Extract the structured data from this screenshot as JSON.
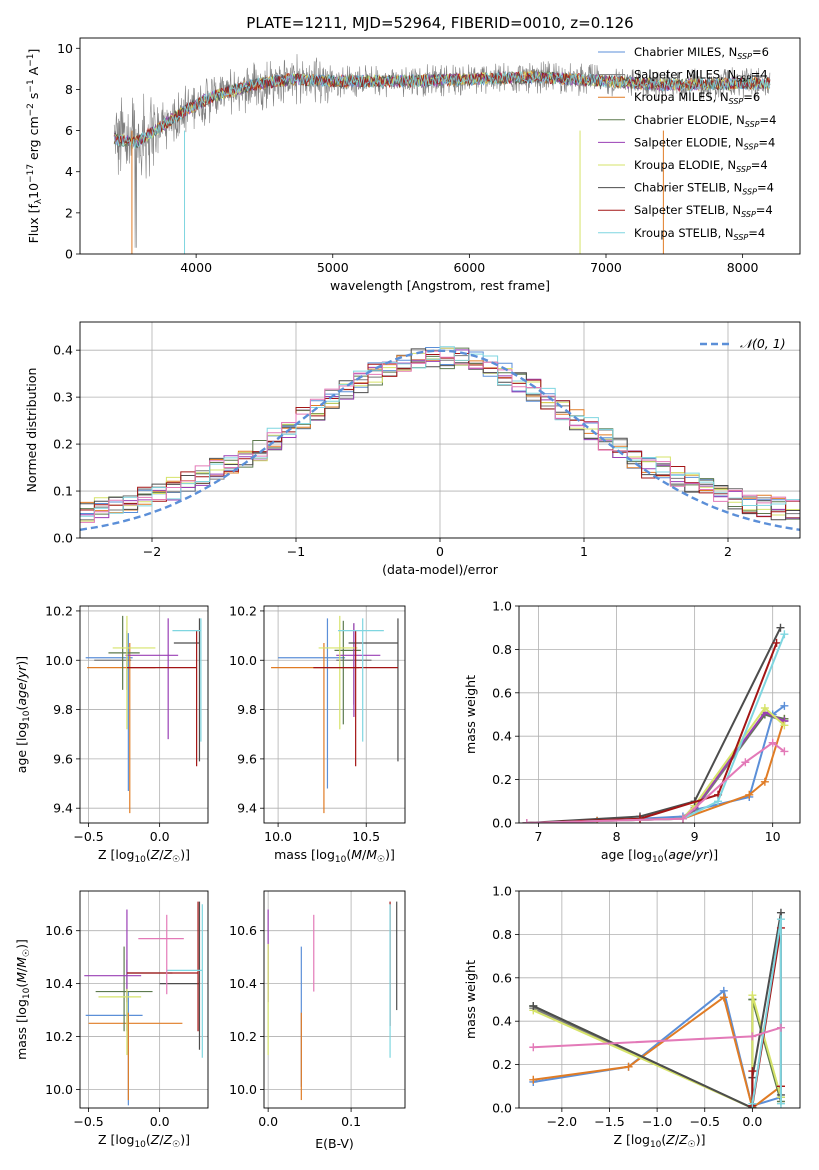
{
  "title": "PLATE=1211, MJD=52964, FIBERID=0010, z=0.126",
  "colors": {
    "Chabrier MILES": "#5b8fd8",
    "Salpeter MILES": "#7a7a7a",
    "Kroupa MILES": "#e07c25",
    "Chabrier ELODIE": "#5d7a4e",
    "Salpeter ELODIE": "#9a3fb5",
    "Kroupa ELODIE": "#d6e36a",
    "Chabrier STELIB": "#4d4d4d",
    "Salpeter STELIB": "#a31515",
    "Kroupa STELIB": "#7fd6e0",
    "magenta_extra": "#e37ab8",
    "gaussian": "#5b8fd8",
    "data": "#808080"
  },
  "chart_data": [
    {
      "id": "spectrum",
      "type": "line",
      "xlabel": "wavelength [Angstrom, rest frame]",
      "ylabel": "Flux [f_λ 10^-17 erg cm^-2 s^-1 A^-1]",
      "xlim": [
        3150,
        8420
      ],
      "ylim": [
        0,
        10.5
      ],
      "xticks": [
        4000,
        5000,
        6000,
        7000,
        8000
      ],
      "yticks": [
        0,
        2,
        4,
        6,
        8,
        10
      ],
      "legend_position": "top-right",
      "legend": [
        {
          "name": "Chabrier MILES",
          "sub": "SSP",
          "n": "6"
        },
        {
          "name": "Salpeter MILES",
          "sub": "SSP",
          "n": "4"
        },
        {
          "name": "Kroupa MILES",
          "sub": "SSP",
          "n": "6"
        },
        {
          "name": "Chabrier ELODIE",
          "sub": "SSP",
          "n": "4"
        },
        {
          "name": "Salpeter ELODIE",
          "sub": "SSP",
          "n": "4"
        },
        {
          "name": "Kroupa ELODIE",
          "sub": "SSP",
          "n": "4"
        },
        {
          "name": "Chabrier STELIB",
          "sub": "SSP",
          "n": "4"
        },
        {
          "name": "Salpeter STELIB",
          "sub": "SSP",
          "n": "4"
        },
        {
          "name": "Kroupa STELIB",
          "sub": "SSP",
          "n": "4"
        }
      ],
      "continuum": [
        [
          3400,
          5.6
        ],
        [
          3550,
          5.4
        ],
        [
          3700,
          6.0
        ],
        [
          3900,
          6.9
        ],
        [
          4100,
          7.6
        ],
        [
          4400,
          8.2
        ],
        [
          4700,
          8.5
        ],
        [
          5000,
          8.4
        ],
        [
          5500,
          8.4
        ],
        [
          6000,
          8.5
        ],
        [
          6500,
          8.6
        ],
        [
          7000,
          8.4
        ],
        [
          7500,
          8.2
        ],
        [
          8000,
          8.3
        ],
        [
          8200,
          8.3
        ]
      ]
    },
    {
      "id": "residuals",
      "type": "step",
      "xlabel": "(data-model)/error",
      "ylabel": "Normed distribution",
      "xlim": [
        -2.5,
        2.5
      ],
      "ylim": [
        0,
        0.46
      ],
      "xticks": [
        -2,
        -1,
        0,
        1,
        2
      ],
      "yticks": [
        0.0,
        0.1,
        0.2,
        0.3,
        0.4
      ],
      "grid": true,
      "bin_width": 0.1,
      "gaussian_label": "𝒩(0, 1)",
      "legend_position": "top-right"
    },
    {
      "id": "age_vs_Z",
      "type": "errorbar",
      "xlabel": "Z [log10(Z/Z☉)]",
      "ylabel": "age [log10(age/yr)]",
      "xlim": [
        -0.56,
        0.34
      ],
      "ylim": [
        9.34,
        10.22
      ],
      "xticks": [
        -0.5,
        0.0
      ],
      "yticks": [
        9.4,
        9.6,
        9.8,
        10.0,
        10.2
      ],
      "points": [
        {
          "series": "Chabrier MILES",
          "x": -0.22,
          "xerr": [
            0.3,
            0.03
          ],
          "y": 10.01,
          "yerr": [
            0.54,
            0.1
          ]
        },
        {
          "series": "Salpeter MILES",
          "x": -0.23,
          "xerr": [
            0.23,
            0.03
          ],
          "y": 10.0,
          "yerr": [
            0.12,
            0.12
          ]
        },
        {
          "series": "Kroupa MILES",
          "x": -0.21,
          "xerr": [
            0.3,
            0.18
          ],
          "y": 9.97,
          "yerr": [
            0.59,
            0.1
          ]
        },
        {
          "series": "Chabrier ELODIE",
          "x": -0.26,
          "xerr": [
            0.1,
            0.12
          ],
          "y": 10.03,
          "yerr": [
            0.15,
            0.15
          ]
        },
        {
          "series": "Salpeter ELODIE",
          "x": 0.06,
          "xerr": [
            0.3,
            0.07
          ],
          "y": 10.02,
          "yerr": [
            0.34,
            0.15
          ]
        },
        {
          "series": "Kroupa ELODIE",
          "x": -0.23,
          "xerr": [
            0.1,
            0.2
          ],
          "y": 10.05,
          "yerr": [
            0.33,
            0.13
          ]
        },
        {
          "series": "Chabrier STELIB",
          "x": 0.28,
          "xerr": [
            0.18,
            0.0
          ],
          "y": 10.07,
          "yerr": [
            0.48,
            0.1
          ]
        },
        {
          "series": "Salpeter STELIB",
          "x": 0.26,
          "xerr": [
            0.49,
            0.0
          ],
          "y": 9.97,
          "yerr": [
            0.4,
            0.15
          ]
        },
        {
          "series": "Kroupa STELIB",
          "x": 0.29,
          "xerr": [
            0.2,
            0.0
          ],
          "y": 10.12,
          "yerr": [
            0.45,
            0.05
          ]
        }
      ]
    },
    {
      "id": "age_vs_mass",
      "type": "errorbar",
      "xlabel": "mass [log10(M/M☉)]",
      "ylabel": "",
      "xlim": [
        9.92,
        10.72
      ],
      "ylim": [
        9.34,
        10.22
      ],
      "xticks": [
        10.0,
        10.5
      ],
      "yticks": [
        9.4,
        9.6,
        9.8,
        10.0,
        10.2
      ],
      "points": [
        {
          "series": "Chabrier MILES",
          "x": 10.28,
          "xerr": [
            0.28,
            0.1
          ],
          "y": 10.01,
          "yerr": [
            0.53,
            0.16
          ]
        },
        {
          "series": "Salpeter MILES",
          "x": 10.43,
          "xerr": [
            0.1,
            0.1
          ],
          "y": 10.0,
          "yerr": [
            0.18,
            0.15
          ]
        },
        {
          "series": "Kroupa MILES",
          "x": 10.26,
          "xerr": [
            0.3,
            0.2
          ],
          "y": 9.97,
          "yerr": [
            0.59,
            0.1
          ]
        },
        {
          "series": "Chabrier ELODIE",
          "x": 10.37,
          "xerr": [
            0.05,
            0.1
          ],
          "y": 10.04,
          "yerr": [
            0.3,
            0.12
          ]
        },
        {
          "series": "Salpeter ELODIE",
          "x": 10.43,
          "xerr": [
            0.1,
            0.15
          ],
          "y": 10.02,
          "yerr": [
            0.25,
            0.13
          ]
        },
        {
          "series": "Kroupa ELODIE",
          "x": 10.35,
          "xerr": [
            0.12,
            0.1
          ],
          "y": 10.05,
          "yerr": [
            0.33,
            0.13
          ]
        },
        {
          "series": "Chabrier STELIB",
          "x": 10.68,
          "xerr": [
            0.28,
            0.0
          ],
          "y": 10.07,
          "yerr": [
            0.48,
            0.1
          ]
        },
        {
          "series": "Salpeter STELIB",
          "x": 10.44,
          "xerr": [
            0.24,
            0.24
          ],
          "y": 9.97,
          "yerr": [
            0.4,
            0.15
          ]
        },
        {
          "series": "Kroupa STELIB",
          "x": 10.48,
          "xerr": [
            0.14,
            0.12
          ],
          "y": 10.12,
          "yerr": [
            0.45,
            0.05
          ]
        }
      ]
    },
    {
      "id": "massweight_vs_age",
      "type": "line",
      "xlabel": "age [log10(age/yr)]",
      "ylabel": "mass weight",
      "xlim": [
        6.75,
        10.35
      ],
      "ylim": [
        0,
        1.0
      ],
      "xticks": [
        7,
        8,
        9,
        10
      ],
      "yticks": [
        0.0,
        0.2,
        0.4,
        0.6,
        0.8,
        1.0
      ],
      "grid": true,
      "series": [
        {
          "name": "Chabrier MILES",
          "x": [
            6.85,
            7.75,
            8.3,
            8.85,
            9.0,
            9.7,
            10.0,
            10.15
          ],
          "y": [
            0.0,
            0.01,
            0.02,
            0.03,
            0.06,
            0.12,
            0.5,
            0.54
          ]
        },
        {
          "name": "Salpeter MILES",
          "x": [
            6.85,
            7.75,
            8.85,
            9.0,
            9.9,
            10.15
          ],
          "y": [
            0.0,
            0.01,
            0.02,
            0.06,
            0.5,
            0.47
          ]
        },
        {
          "name": "Kroupa MILES",
          "x": [
            6.85,
            7.75,
            8.85,
            9.7,
            9.9,
            10.15
          ],
          "y": [
            0.0,
            0.01,
            0.02,
            0.13,
            0.19,
            0.48
          ]
        },
        {
          "name": "Chabrier ELODIE",
          "x": [
            6.85,
            8.85,
            9.0,
            9.9,
            10.15
          ],
          "y": [
            0.0,
            0.02,
            0.08,
            0.5,
            0.48
          ]
        },
        {
          "name": "Salpeter ELODIE",
          "x": [
            6.85,
            8.85,
            9.0,
            9.9,
            10.15
          ],
          "y": [
            0.0,
            0.02,
            0.07,
            0.51,
            0.47
          ]
        },
        {
          "name": "Kroupa ELODIE",
          "x": [
            6.85,
            8.85,
            9.0,
            9.9,
            10.15
          ],
          "y": [
            0.0,
            0.02,
            0.08,
            0.53,
            0.45
          ]
        },
        {
          "name": "Chabrier STELIB",
          "x": [
            6.85,
            8.3,
            9.0,
            10.1
          ],
          "y": [
            0.0,
            0.03,
            0.1,
            0.9
          ]
        },
        {
          "name": "Salpeter STELIB",
          "x": [
            6.85,
            8.3,
            9.3,
            10.05
          ],
          "y": [
            0.0,
            0.02,
            0.13,
            0.83
          ]
        },
        {
          "name": "Kroupa STELIB",
          "x": [
            6.85,
            8.85,
            9.3,
            10.15
          ],
          "y": [
            0.0,
            0.02,
            0.1,
            0.87
          ]
        },
        {
          "name": "magenta_extra",
          "x": [
            6.85,
            8.85,
            9.65,
            10.0,
            10.15
          ],
          "y": [
            0.0,
            0.02,
            0.28,
            0.37,
            0.33
          ]
        }
      ]
    },
    {
      "id": "mass_vs_Z",
      "type": "errorbar",
      "xlabel": "Z [log10(Z/Z☉)]",
      "ylabel": "mass [log10(M/M☉)]",
      "xlim": [
        -0.56,
        0.34
      ],
      "ylim": [
        9.93,
        10.75
      ],
      "xticks": [
        -0.5,
        0.0
      ],
      "yticks": [
        10.0,
        10.2,
        10.4,
        10.6
      ],
      "points": [
        {
          "series": "Chabrier MILES",
          "x": -0.22,
          "xerr": [
            0.3,
            0.1
          ],
          "y": 10.28,
          "yerr": [
            0.34,
            0.09
          ]
        },
        {
          "series": "Salpeter MILES",
          "x": -0.23,
          "xerr": [
            0.0,
            0.32
          ],
          "y": 10.44,
          "yerr": [
            0.22,
            0.05
          ]
        },
        {
          "series": "Kroupa MILES",
          "x": -0.22,
          "xerr": [
            0.28,
            0.38
          ],
          "y": 10.25,
          "yerr": [
            0.29,
            0.04
          ]
        },
        {
          "series": "Chabrier ELODIE",
          "x": -0.25,
          "xerr": [
            0.2,
            0.2
          ],
          "y": 10.37,
          "yerr": [
            0.15,
            0.17
          ]
        },
        {
          "series": "Salpeter ELODIE",
          "x": -0.23,
          "xerr": [
            0.3,
            0.1
          ],
          "y": 10.43,
          "yerr": [
            0.1,
            0.25
          ]
        },
        {
          "series": "Kroupa ELODIE",
          "x": -0.23,
          "xerr": [
            0.2,
            0.1
          ],
          "y": 10.35,
          "yerr": [
            0.22,
            0.03
          ]
        },
        {
          "series": "Chabrier STELIB",
          "x": 0.28,
          "xerr": [
            0.28,
            0.0
          ],
          "y": 10.4,
          "yerr": [
            0.25,
            0.31
          ]
        },
        {
          "series": "Salpeter STELIB",
          "x": 0.27,
          "xerr": [
            0.5,
            0.0
          ],
          "y": 10.44,
          "yerr": [
            0.22,
            0.27
          ]
        },
        {
          "series": "Kroupa STELIB",
          "x": 0.3,
          "xerr": [
            0.25,
            0.0
          ],
          "y": 10.45,
          "yerr": [
            0.33,
            0.25
          ]
        },
        {
          "series": "magenta_extra",
          "x": 0.05,
          "xerr": [
            0.2,
            0.12
          ],
          "y": 10.57,
          "yerr": [
            0.21,
            0.09
          ]
        }
      ]
    },
    {
      "id": "mass_vs_EBV",
      "type": "errorbar",
      "xlabel": "E(B-V)",
      "ylabel": "",
      "xlim": [
        -0.005,
        0.165
      ],
      "ylim": [
        9.93,
        10.75
      ],
      "xticks": [
        0.0,
        0.1
      ],
      "yticks": [
        10.0,
        10.2,
        10.4,
        10.6
      ],
      "points": [
        {
          "series": "Chabrier MILES",
          "x": 0.04,
          "xerr": [
            0,
            0
          ],
          "y": 10.28,
          "yerr": [
            0.27,
            0.26
          ]
        },
        {
          "series": "Kroupa MILES",
          "x": 0.04,
          "xerr": [
            0,
            0
          ],
          "y": 10.25,
          "yerr": [
            0.29,
            0.04
          ]
        },
        {
          "series": "Salpeter ELODIE",
          "x": 0.0,
          "xerr": [
            0,
            0
          ],
          "y": 10.43,
          "yerr": [
            0.1,
            0.25
          ]
        },
        {
          "series": "Kroupa ELODIE",
          "x": 0.0,
          "xerr": [
            0,
            0
          ],
          "y": 10.35,
          "yerr": [
            0.22,
            0.2
          ]
        },
        {
          "series": "Chabrier STELIB",
          "x": 0.155,
          "xerr": [
            0,
            0
          ],
          "y": 10.4,
          "yerr": [
            0.1,
            0.31
          ]
        },
        {
          "series": "Salpeter STELIB",
          "x": 0.147,
          "xerr": [
            0,
            0
          ],
          "y": 10.44,
          "yerr": [
            0.2,
            0.27
          ]
        },
        {
          "series": "Kroupa STELIB",
          "x": 0.147,
          "xerr": [
            0,
            0
          ],
          "y": 10.45,
          "yerr": [
            0.33,
            0.25
          ]
        },
        {
          "series": "magenta_extra",
          "x": 0.055,
          "xerr": [
            0,
            0
          ],
          "y": 10.52,
          "yerr": [
            0.15,
            0.14
          ]
        }
      ]
    },
    {
      "id": "massweight_vs_Z",
      "type": "line",
      "xlabel": "Z [log10(Z/Z☉)]",
      "ylabel": "mass weight",
      "xlim": [
        -2.45,
        0.5
      ],
      "ylim": [
        0,
        1.0
      ],
      "xticks": [
        -2.0,
        -1.5,
        -1.0,
        -0.5,
        0.0
      ],
      "yticks": [
        0.0,
        0.2,
        0.4,
        0.6,
        0.8,
        1.0
      ],
      "grid": true,
      "series": [
        {
          "name": "Chabrier MILES",
          "x": [
            -2.3,
            -1.3,
            -0.3,
            0.0,
            0.0,
            0.3
          ],
          "y": [
            0.12,
            0.19,
            0.54,
            0.0,
            0.01,
            0.05
          ]
        },
        {
          "name": "Kroupa MILES",
          "x": [
            -2.3,
            -1.3,
            -0.3,
            0.0,
            0.3
          ],
          "y": [
            0.13,
            0.19,
            0.51,
            0.0,
            0.1
          ]
        },
        {
          "name": "Salpeter MILES",
          "x": [
            -2.3,
            0.0,
            0.0,
            0.3
          ],
          "y": [
            0.46,
            0.0,
            0.5,
            0.05
          ]
        },
        {
          "name": "Chabrier ELODIE",
          "x": [
            -2.3,
            0.0,
            0.0,
            0.3
          ],
          "y": [
            0.47,
            0.0,
            0.5,
            0.03
          ]
        },
        {
          "name": "Kroupa ELODIE",
          "x": [
            -2.3,
            0.0,
            0.0,
            0.3
          ],
          "y": [
            0.45,
            0.0,
            0.52,
            0.05
          ]
        },
        {
          "name": "Chabrier STELIB",
          "x": [
            -2.3,
            0.0,
            0.0,
            0.3,
            0.3
          ],
          "y": [
            0.47,
            0.0,
            0.14,
            0.9,
            0.06
          ]
        },
        {
          "name": "Salpeter STELIB",
          "x": [
            0.0,
            0.0,
            0.3,
            0.3
          ],
          "y": [
            0.17,
            0.01,
            0.83,
            0.1
          ]
        },
        {
          "name": "Kroupa STELIB",
          "x": [
            0.0,
            0.3,
            0.3
          ],
          "y": [
            0.02,
            0.87,
            0.02
          ]
        },
        {
          "name": "magenta_extra",
          "x": [
            -2.3,
            0.0,
            0.3
          ],
          "y": [
            0.28,
            0.33,
            0.37
          ]
        }
      ]
    }
  ]
}
